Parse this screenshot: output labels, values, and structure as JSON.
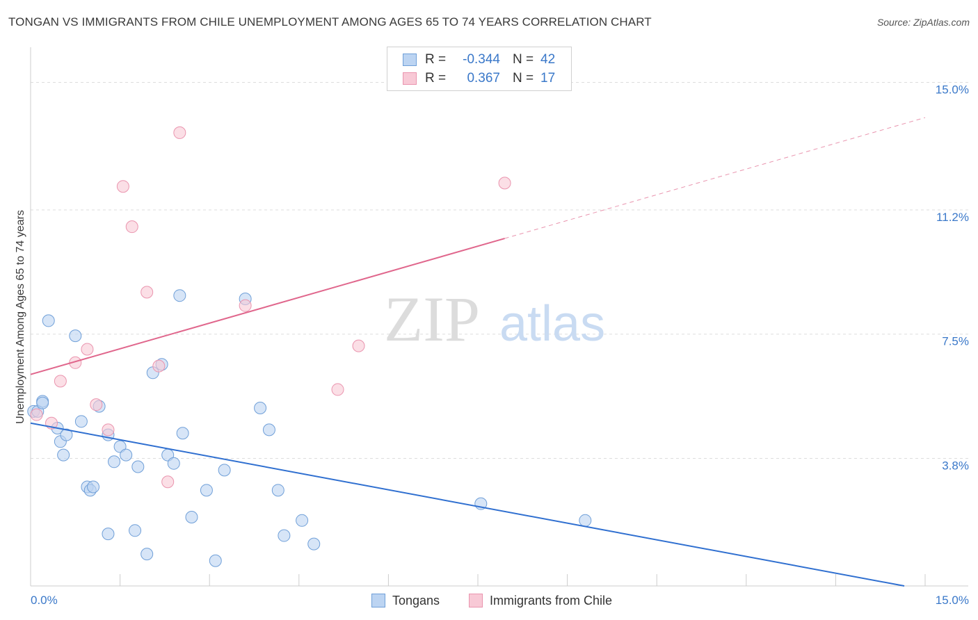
{
  "title": "TONGAN VS IMMIGRANTS FROM CHILE UNEMPLOYMENT AMONG AGES 65 TO 74 YEARS CORRELATION CHART",
  "source": "Source: ZipAtlas.com",
  "watermark": {
    "zip": "ZIP",
    "atlas": "atlas"
  },
  "legend": {
    "tongans": {
      "r_label": "R =",
      "r_value": "-0.344",
      "n_label": "N =",
      "n_value": "42"
    },
    "chile": {
      "r_label": "R =",
      "r_value": "0.367",
      "n_label": "N =",
      "n_value": "17"
    }
  },
  "bottom_legend": {
    "tongans": "Tongans",
    "chile": "Immigrants from Chile"
  },
  "colors": {
    "tongans_fill": "#bcd4f2",
    "tongans_stroke": "#6f9fd8",
    "tongans_line": "#2f6fd0",
    "chile_fill": "#f8c9d6",
    "chile_stroke": "#ea94ae",
    "chile_line": "#e0668c",
    "tick_label": "#3a78c9",
    "grid": "#dddddd"
  },
  "chart_data": {
    "type": "scatter",
    "title": "TONGAN VS IMMIGRANTS FROM CHILE UNEMPLOYMENT AMONG AGES 65 TO 74 YEARS CORRELATION CHART",
    "xlabel": "",
    "ylabel": "Unemployment Among Ages 65 to 74 years",
    "xlim": [
      0,
      15
    ],
    "ylim": [
      0,
      15.9
    ],
    "x_tick_labels": [
      "0.0%",
      "15.0%"
    ],
    "y_ticks": [
      3.8,
      7.5,
      11.2,
      15.0
    ],
    "y_tick_labels": [
      "3.8%",
      "7.5%",
      "11.2%",
      "15.0%"
    ],
    "grid": true,
    "legend_position": "top-center",
    "series": [
      {
        "name": "Tongans",
        "points": [
          [
            0.05,
            5.2
          ],
          [
            0.12,
            5.2
          ],
          [
            0.2,
            5.5
          ],
          [
            0.3,
            7.9
          ],
          [
            0.45,
            4.7
          ],
          [
            0.5,
            4.3
          ],
          [
            0.55,
            3.9
          ],
          [
            0.6,
            4.5
          ],
          [
            0.75,
            7.45
          ],
          [
            0.85,
            4.9
          ],
          [
            0.95,
            2.95
          ],
          [
            1.0,
            2.85
          ],
          [
            1.05,
            2.95
          ],
          [
            1.15,
            5.35
          ],
          [
            1.3,
            1.55
          ],
          [
            1.4,
            3.7
          ],
          [
            1.5,
            4.15
          ],
          [
            1.6,
            3.9
          ],
          [
            1.75,
            1.65
          ],
          [
            1.8,
            3.55
          ],
          [
            1.95,
            0.95
          ],
          [
            2.05,
            6.35
          ],
          [
            2.2,
            6.6
          ],
          [
            2.3,
            3.9
          ],
          [
            2.4,
            3.65
          ],
          [
            2.5,
            8.65
          ],
          [
            2.55,
            4.55
          ],
          [
            2.7,
            2.05
          ],
          [
            2.95,
            2.85
          ],
          [
            3.1,
            0.75
          ],
          [
            3.25,
            3.45
          ],
          [
            3.6,
            8.55
          ],
          [
            3.85,
            5.3
          ],
          [
            4.0,
            4.65
          ],
          [
            4.15,
            2.85
          ],
          [
            4.25,
            1.5
          ],
          [
            4.55,
            1.95
          ],
          [
            4.75,
            1.25
          ],
          [
            7.55,
            2.45
          ],
          [
            9.3,
            1.95
          ],
          [
            0.2,
            5.45
          ],
          [
            1.3,
            4.5
          ]
        ],
        "trend": {
          "x": [
            0,
            14.65
          ],
          "y": [
            4.85,
            0.0
          ]
        }
      },
      {
        "name": "Immigrants from Chile",
        "points": [
          [
            0.1,
            5.1
          ],
          [
            0.35,
            4.85
          ],
          [
            0.5,
            6.1
          ],
          [
            0.75,
            6.65
          ],
          [
            0.95,
            7.05
          ],
          [
            1.1,
            5.4
          ],
          [
            1.3,
            4.65
          ],
          [
            1.55,
            11.9
          ],
          [
            1.7,
            10.7
          ],
          [
            1.95,
            8.75
          ],
          [
            2.15,
            6.55
          ],
          [
            2.3,
            3.1
          ],
          [
            2.5,
            13.5
          ],
          [
            3.6,
            8.35
          ],
          [
            5.15,
            5.85
          ],
          [
            5.5,
            7.15
          ],
          [
            7.95,
            12.0
          ]
        ],
        "trend": {
          "x": [
            0,
            7.95
          ],
          "y": [
            6.3,
            10.35
          ]
        },
        "trend_extension": {
          "x": [
            7.95,
            15
          ],
          "y": [
            10.35,
            13.95
          ]
        }
      }
    ]
  }
}
